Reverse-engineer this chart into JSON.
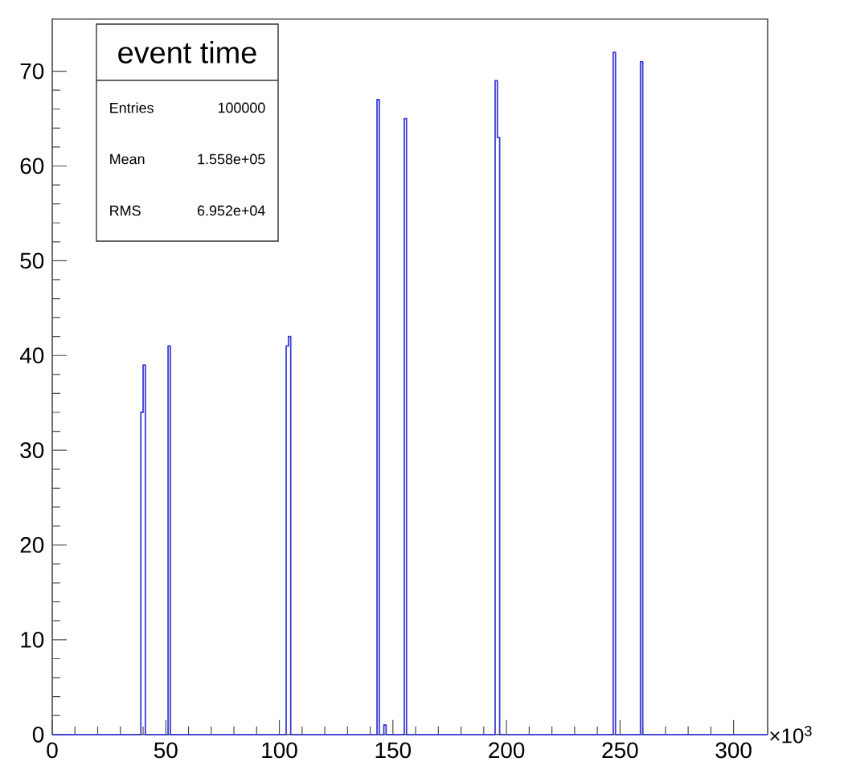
{
  "chart_data": {
    "type": "histogram",
    "title": "event time",
    "xlabel": "×10$^{3}$",
    "bins": [
      0,
      39,
      40,
      41,
      51,
      52,
      103,
      104,
      105,
      143,
      144,
      146,
      147,
      155,
      156,
      195,
      196,
      197,
      247,
      248,
      259,
      260,
      315
    ],
    "values": [
      0,
      34,
      39,
      0,
      41,
      0,
      41,
      42,
      0,
      67,
      0,
      1,
      0,
      65,
      0,
      69,
      63,
      0,
      72,
      0,
      71,
      0
    ],
    "color": "#3c3cd8",
    "xlim": [
      0,
      315
    ],
    "ylim": [
      0,
      75.5
    ],
    "xticks": [
      0,
      50,
      100,
      150,
      200,
      250,
      300
    ],
    "yticks": [
      0,
      10,
      20,
      30,
      40,
      50,
      60,
      70
    ],
    "annotations": [
      "Entries",
      "100000",
      "Mean",
      "1.558e+05",
      "RMS",
      "6.952e+04"
    ],
    "grid": false
  }
}
